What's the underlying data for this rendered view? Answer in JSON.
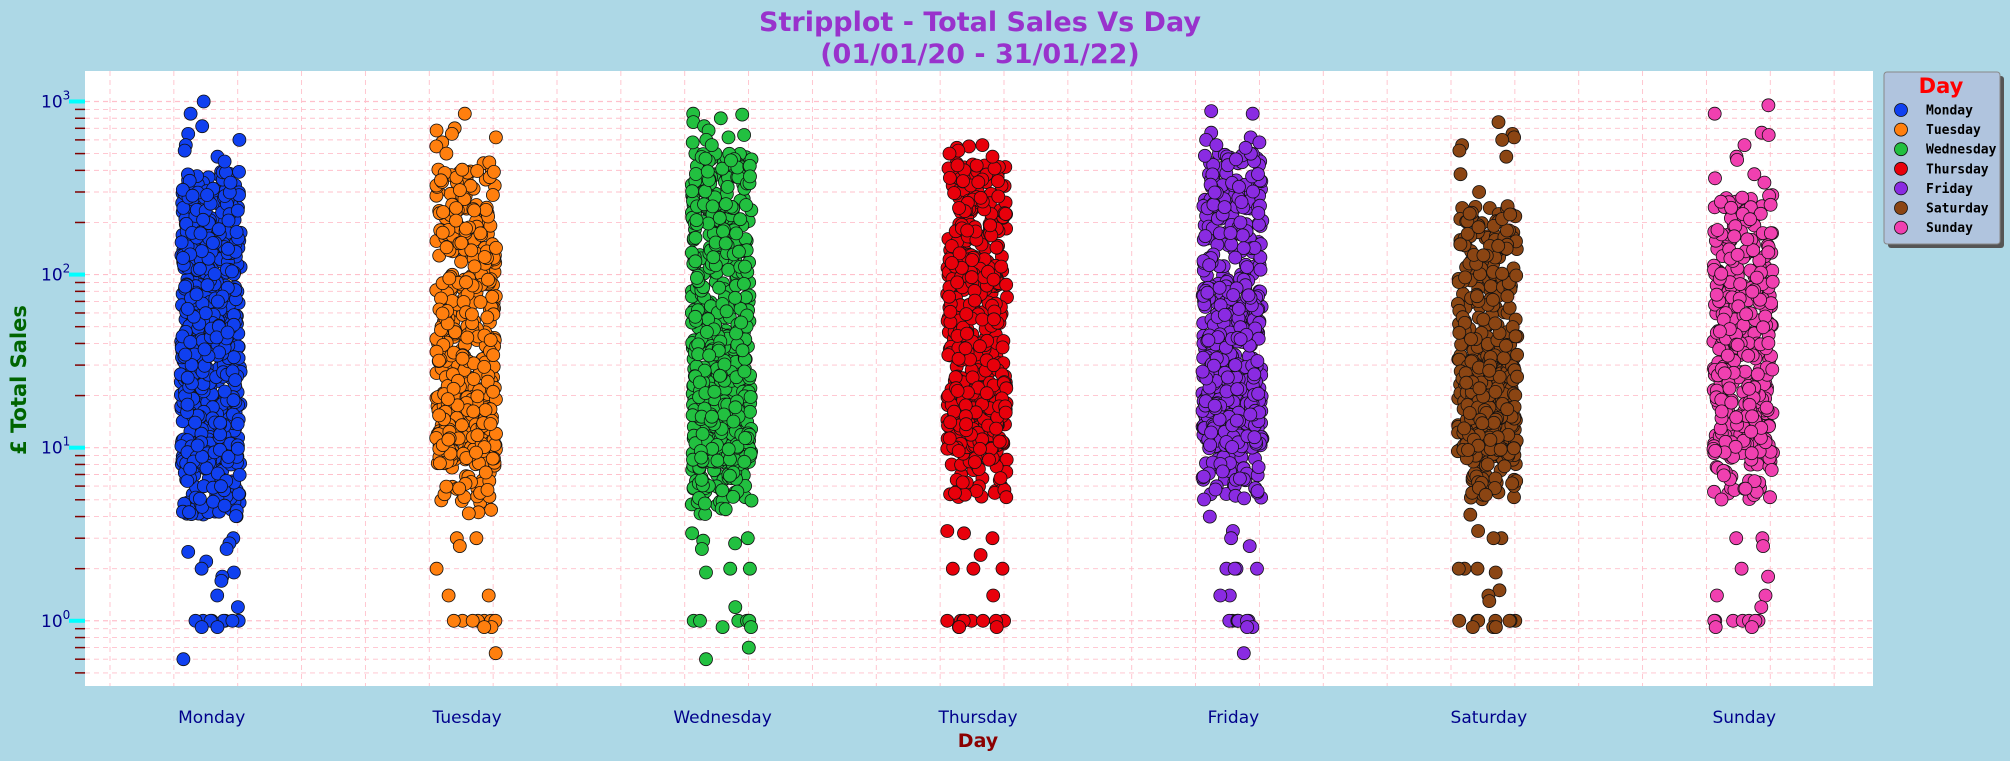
{
  "chart_data": {
    "type": "scatter",
    "subtype": "stripplot",
    "title": [
      "Stripplot - Total Sales Vs Day",
      "(01/01/20 - 31/01/22)"
    ],
    "xlabel": "Day",
    "ylabel": "£ Total Sales",
    "y_scale": "log",
    "ylim": [
      0.42,
      1500
    ],
    "grid": true,
    "legend_position": "outside-right",
    "legend_title": "Day",
    "categories": [
      "Monday",
      "Tuesday",
      "Wednesday",
      "Thursday",
      "Friday",
      "Saturday",
      "Sunday"
    ],
    "y_ticks": [
      {
        "value": 1,
        "base": "10",
        "exp": "0"
      },
      {
        "value": 10,
        "base": "10",
        "exp": "1"
      },
      {
        "value": 100,
        "base": "10",
        "exp": "2"
      },
      {
        "value": 1000,
        "base": "10",
        "exp": "3"
      }
    ],
    "series": [
      {
        "name": "Monday",
        "color": "#1040f0",
        "point_count": 700,
        "body_range": [
          4,
          400
        ],
        "max": 1000,
        "min": 0.6,
        "tail_values": [
          1000,
          850,
          720,
          650,
          600,
          560,
          520,
          480,
          450
        ],
        "low_values": [
          3,
          2.8,
          2.6,
          2.5,
          2.2,
          2,
          1.9,
          1.8,
          1.7,
          1.4,
          1.2,
          1,
          1,
          1,
          1,
          1,
          1,
          1,
          1,
          0.92,
          0.92,
          0.6
        ]
      },
      {
        "name": "Tuesday",
        "color": "#ff7f0e",
        "point_count": 480,
        "body_range": [
          4,
          450
        ],
        "max": 850,
        "min": 0.65,
        "tail_values": [
          850,
          700,
          680,
          650,
          620,
          580,
          550,
          500
        ],
        "low_values": [
          3,
          3,
          2.7,
          2,
          1.4,
          1.4,
          1,
          1,
          1,
          1,
          1,
          1,
          1,
          0.92,
          0.92,
          0.65
        ]
      },
      {
        "name": "Wednesday",
        "color": "#22c040",
        "point_count": 650,
        "body_range": [
          4,
          500
        ],
        "max": 850,
        "min": 0.6,
        "tail_values": [
          850,
          840,
          800,
          760,
          720,
          680,
          640,
          620,
          600,
          580,
          560
        ],
        "low_values": [
          3.2,
          3,
          2.9,
          2.8,
          2.6,
          2,
          2,
          1.9,
          1.2,
          1,
          1,
          1,
          1,
          1,
          1,
          1,
          0.92,
          0.92,
          0.7,
          0.6
        ]
      },
      {
        "name": "Thursday",
        "color": "#e8000b",
        "point_count": 560,
        "body_range": [
          5,
          450
        ],
        "max": 560,
        "min": 0.92,
        "tail_values": [
          560,
          550,
          540,
          520,
          500,
          480
        ],
        "low_values": [
          3.3,
          3.2,
          3,
          2.4,
          2,
          2,
          2,
          1.4,
          1,
          1,
          1,
          1,
          1,
          1,
          1,
          1,
          0.92,
          0.92,
          0.92
        ]
      },
      {
        "name": "Friday",
        "color": "#8a2be2",
        "point_count": 560,
        "body_range": [
          5,
          500
        ],
        "max": 880,
        "min": 0.65,
        "tail_values": [
          880,
          850,
          660,
          620,
          600,
          580,
          560,
          540
        ],
        "low_values": [
          4,
          3.3,
          3,
          2.7,
          2,
          2,
          2,
          2,
          1.4,
          1.4,
          1,
          1,
          1,
          1,
          1,
          1,
          1,
          0.92,
          0.92,
          0.65
        ]
      },
      {
        "name": "Saturday",
        "color": "#8b4513",
        "point_count": 460,
        "body_range": [
          5,
          250
        ],
        "max": 760,
        "min": 0.92,
        "tail_values": [
          760,
          650,
          620,
          600,
          560,
          520,
          480,
          380,
          300
        ],
        "low_values": [
          4.1,
          3.3,
          3,
          3,
          2,
          2,
          2,
          1.9,
          1.5,
          1.4,
          1.3,
          1,
          1,
          1,
          1,
          1,
          1,
          1,
          0.92,
          0.92,
          0.92
        ]
      },
      {
        "name": "Sunday",
        "color": "#f040b0",
        "point_count": 420,
        "body_range": [
          5,
          300
        ],
        "max": 950,
        "min": 0.92,
        "tail_values": [
          950,
          850,
          660,
          640,
          560,
          480,
          460,
          380,
          360,
          340
        ],
        "low_values": [
          3,
          3,
          2.7,
          2,
          1.8,
          1.4,
          1.4,
          1.2,
          1,
          1,
          1,
          1,
          1,
          1,
          1,
          0.92,
          0.92
        ]
      }
    ]
  }
}
